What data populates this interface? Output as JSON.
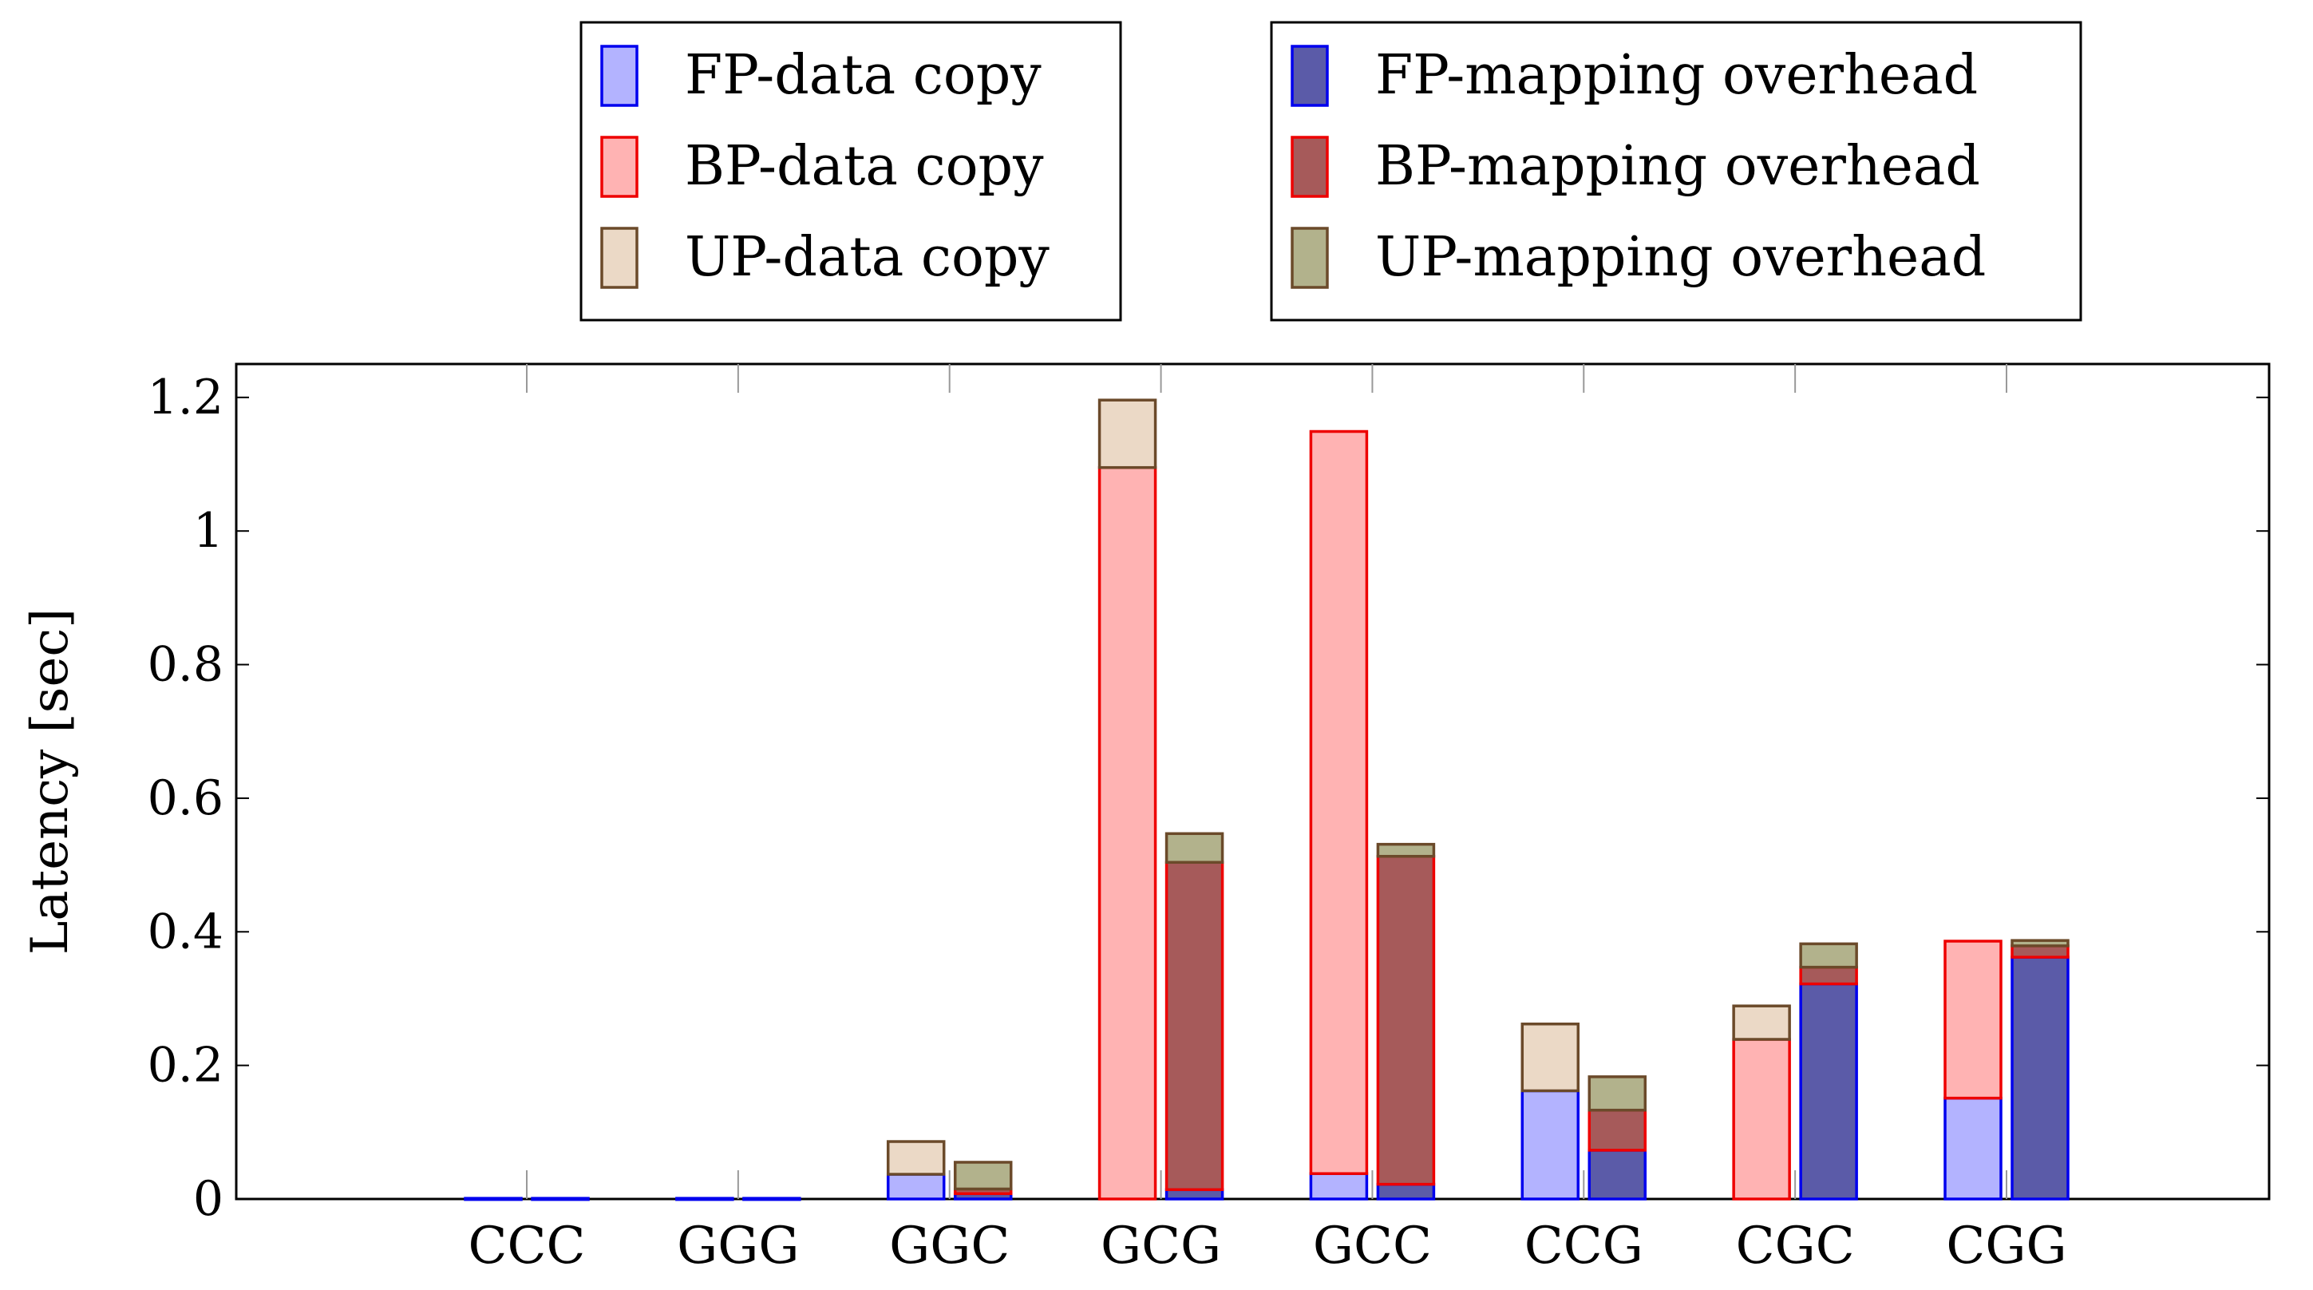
{
  "chart_data": {
    "type": "bar",
    "subtype": "stacked-grouped",
    "title": "",
    "xlabel": "",
    "ylabel": "Latency [sec]",
    "ylim": [
      0,
      1.25
    ],
    "yticks": [
      {
        "value": 0,
        "label": "0"
      },
      {
        "value": 0.2,
        "label": "0.2"
      },
      {
        "value": 0.4,
        "label": "0.4"
      },
      {
        "value": 0.6,
        "label": "0.6"
      },
      {
        "value": 0.8,
        "label": "0.8"
      },
      {
        "value": 1.0,
        "label": "1"
      },
      {
        "value": 1.2,
        "label": "1.2"
      }
    ],
    "categories": [
      "CCC",
      "GGG",
      "GGC",
      "GCG",
      "GCC",
      "CCG",
      "CGC",
      "CGG"
    ],
    "groups": [
      {
        "name": "data copy",
        "series": [
          {
            "name": "FP-data copy",
            "fill": "#b3b3ff",
            "stroke": "#0000ee",
            "values": [
              0.001,
              0.001,
              0.037,
              0.0,
              0.038,
              0.162,
              0.0,
              0.151
            ]
          },
          {
            "name": "BP-data copy",
            "fill": "#ffb3b3",
            "stroke": "#ee0000",
            "values": [
              0.0,
              0.0,
              0.0,
              1.095,
              1.111,
              0.0,
              0.239,
              0.235
            ]
          },
          {
            "name": "UP-data copy",
            "fill": "#ebd9c6",
            "stroke": "#6b4a2a",
            "values": [
              0.0,
              0.0,
              0.049,
              0.101,
              0.0,
              0.1,
              0.05,
              0.0
            ]
          }
        ]
      },
      {
        "name": "mapping overhead",
        "series": [
          {
            "name": "FP-mapping overhead",
            "fill": "#5b5ba8",
            "stroke": "#0000ee",
            "values": [
              0.001,
              0.001,
              0.008,
              0.014,
              0.022,
              0.073,
              0.322,
              0.362
            ]
          },
          {
            "name": "BP-mapping overhead",
            "fill": "#a65a5a",
            "stroke": "#ee0000",
            "values": [
              0.0,
              0.0,
              0.007,
              0.49,
              0.491,
              0.06,
              0.025,
              0.017
            ]
          },
          {
            "name": "UP-mapping overhead",
            "fill": "#b2b28c",
            "stroke": "#6b4a2a",
            "values": [
              0.0,
              0.0,
              0.04,
              0.043,
              0.018,
              0.05,
              0.035,
              0.008
            ]
          }
        ]
      }
    ],
    "legend": [
      {
        "placement": "top-left",
        "entries": [
          "FP-data copy",
          "BP-data copy",
          "UP-data copy"
        ]
      },
      {
        "placement": "top-right",
        "entries": [
          "FP-mapping overhead",
          "BP-mapping overhead",
          "UP-mapping overhead"
        ]
      }
    ],
    "grid": false
  }
}
